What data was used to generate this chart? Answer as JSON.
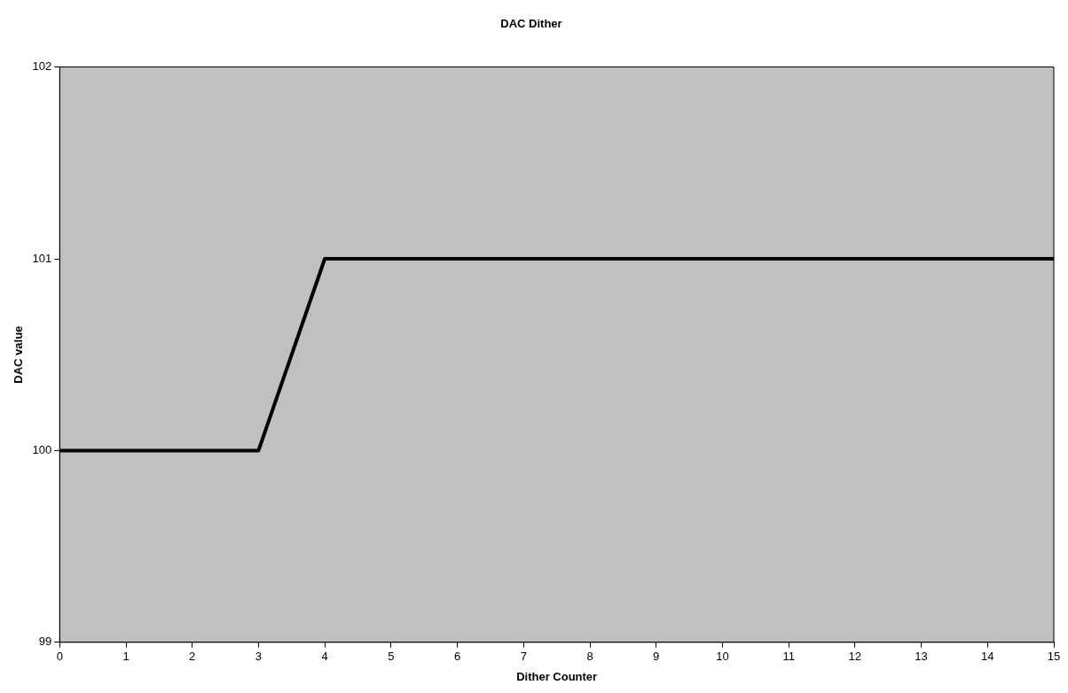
{
  "chart_data": {
    "type": "line",
    "title": "DAC Dither",
    "xlabel": "Dither Counter",
    "ylabel": "DAC value",
    "x": [
      0,
      1,
      2,
      3,
      4,
      5,
      6,
      7,
      8,
      9,
      10,
      11,
      12,
      13,
      14,
      15
    ],
    "series": [
      {
        "color": "#000000",
        "values": [
          100,
          100,
          100,
          100,
          101,
          101,
          101,
          101,
          101,
          101,
          101,
          101,
          101,
          101,
          101,
          101
        ]
      }
    ],
    "xlim": [
      0,
      15
    ],
    "xticks": [
      0,
      1,
      2,
      3,
      4,
      5,
      6,
      7,
      8,
      9,
      10,
      11,
      12,
      13,
      14,
      15
    ],
    "ylim": [
      99,
      102
    ],
    "yticks": [
      99,
      100,
      101,
      102
    ],
    "legend": false,
    "marker": "none",
    "line_style": "solid"
  }
}
